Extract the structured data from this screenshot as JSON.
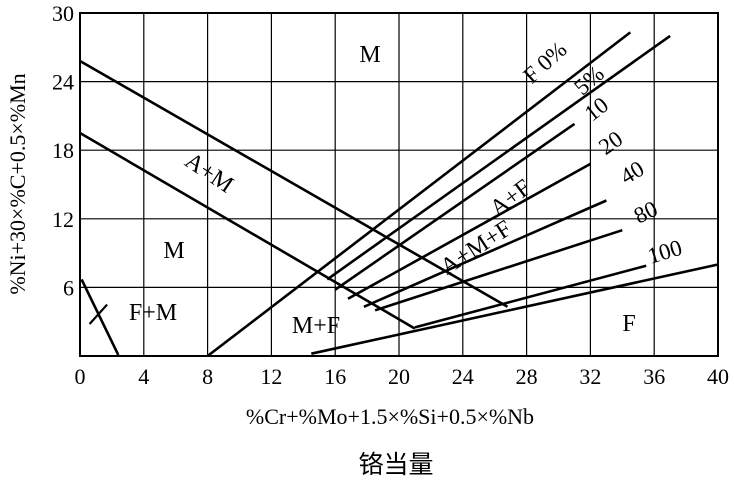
{
  "chart_data": {
    "type": "line",
    "title": "",
    "xlabel": "%Cr+%Mo+1.5×%Si+0.5×%Nb",
    "ylabel": "%Ni+30×%C+0.5×%Mn",
    "caption": "铬当量",
    "xlim": [
      0,
      40
    ],
    "ylim": [
      0,
      30
    ],
    "x_ticks": [
      "0",
      "4",
      "8",
      "12",
      "16",
      "20",
      "24",
      "28",
      "32",
      "36",
      "40"
    ],
    "y_ticks": [
      "6",
      "12",
      "18",
      "24",
      "30"
    ],
    "grid": true,
    "regions": [
      "M",
      "M",
      "A+M",
      "F+M",
      "M+F",
      "A+M+F",
      "A+F",
      "F"
    ],
    "series": [
      {
        "name": "F 0%",
        "x": [
          8.0,
          34.5
        ],
        "y": [
          0.0,
          28.3
        ]
      },
      {
        "name": "5%",
        "x": [
          15.5,
          37.0
        ],
        "y": [
          6.7,
          28.0
        ]
      },
      {
        "name": "10",
        "x": [
          16.0,
          31.0
        ],
        "y": [
          5.8,
          20.3
        ]
      },
      {
        "name": "20",
        "x": [
          16.8,
          32.0
        ],
        "y": [
          5.0,
          16.8
        ]
      },
      {
        "name": "40",
        "x": [
          17.8,
          33.0
        ],
        "y": [
          4.3,
          13.6
        ]
      },
      {
        "name": "80",
        "x": [
          18.5,
          34.0
        ],
        "y": [
          4.0,
          11.0
        ]
      },
      {
        "name": "100",
        "x": [
          21.0,
          35.5
        ],
        "y": [
          2.5,
          7.9
        ]
      },
      {
        "name": "",
        "x": [
          0,
          26.8
        ],
        "y": [
          25.8,
          4.3
        ]
      },
      {
        "name": "",
        "x": [
          0,
          21.0
        ],
        "y": [
          19.5,
          2.4
        ]
      },
      {
        "name": "",
        "x": [
          14.5,
          40
        ],
        "y": [
          0.2,
          8.0
        ]
      },
      {
        "name": "",
        "x": [
          0.1,
          2.4
        ],
        "y": [
          6.7,
          0.1
        ]
      }
    ]
  }
}
